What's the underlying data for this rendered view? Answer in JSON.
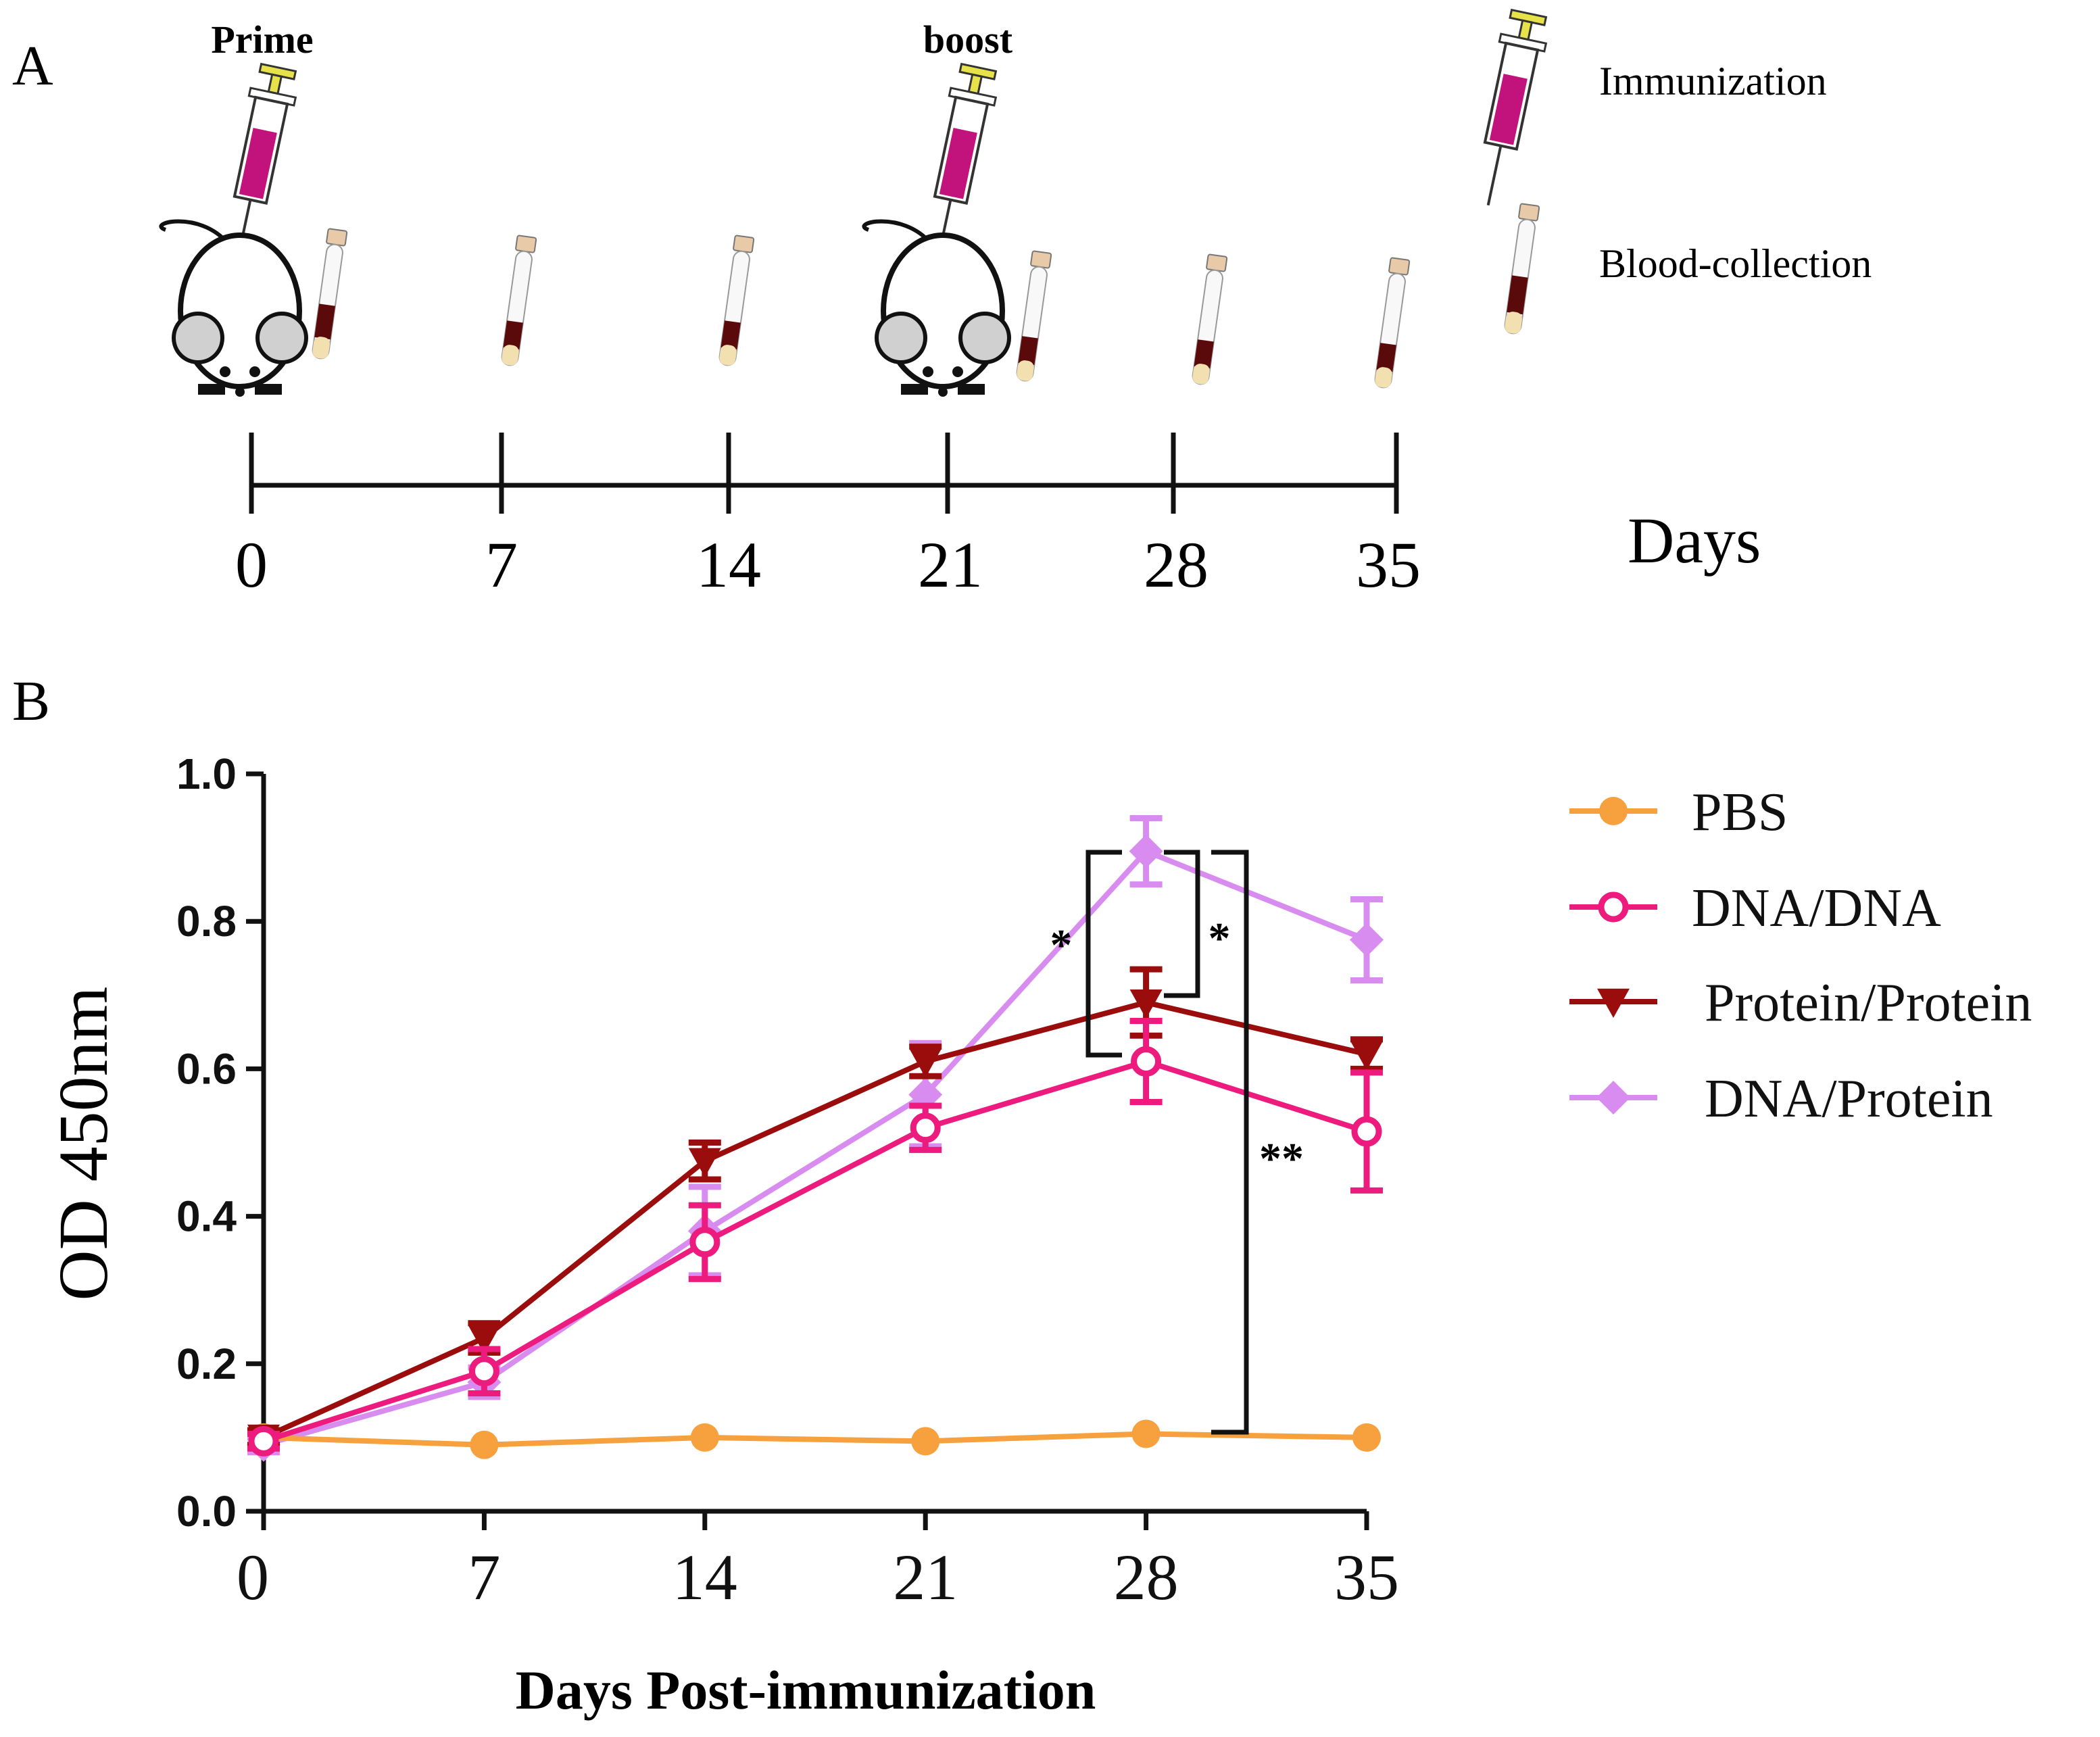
{
  "panel_a": {
    "label": "A",
    "prime_label": "Prime",
    "boost_label": "boost",
    "days_label": "Days",
    "timeline_days": [
      "0",
      "7",
      "14",
      "21",
      "28",
      "35"
    ],
    "legend": {
      "immunization": "Immunization",
      "blood_collection": "Blood-collection"
    }
  },
  "panel_b": {
    "label": "B",
    "significance": {
      "star_left": "*",
      "star_right": "*",
      "double_star": "**"
    }
  },
  "colors": {
    "pbs": "#f7a13e",
    "dna_dna": "#ec1b7d",
    "protein_protein": "#9b0d0d",
    "dna_protein": "#d98cf0",
    "syringe_fill": "#c2137d",
    "syringe_cap": "#e8e24a",
    "blood": "#5a0a0a"
  },
  "chart_data": {
    "type": "line",
    "title": "",
    "xlabel": "Days Post-immunization",
    "ylabel": "OD 450nm",
    "x": [
      0,
      7,
      14,
      21,
      28,
      35
    ],
    "x_tick_labels": [
      "0",
      "7",
      "14",
      "21",
      "28",
      "35"
    ],
    "xlim": [
      0,
      35
    ],
    "ylim": [
      0.0,
      1.0
    ],
    "y_ticks": [
      0.0,
      0.2,
      0.4,
      0.6,
      0.8,
      1.0
    ],
    "y_tick_labels": [
      "0.0",
      "0.2",
      "0.4",
      "0.6",
      "0.8",
      "1.0"
    ],
    "grid": false,
    "legend_position": "right",
    "series": [
      {
        "name": "PBS",
        "key": "pbs",
        "marker": "circle",
        "values": [
          0.1,
          0.09,
          0.1,
          0.095,
          0.105,
          0.1
        ],
        "errors": [
          0.005,
          0.005,
          0.005,
          0.005,
          0.005,
          0.005
        ]
      },
      {
        "name": "DNA/DNA",
        "key": "dna_dna",
        "marker": "open-circle",
        "values": [
          0.095,
          0.19,
          0.365,
          0.52,
          0.61,
          0.515
        ],
        "errors": [
          0.01,
          0.03,
          0.05,
          0.03,
          0.055,
          0.08
        ]
      },
      {
        "name": "Protein/Protein",
        "key": "protein_protein",
        "marker": "triangle-down",
        "values": [
          0.1,
          0.235,
          0.475,
          0.61,
          0.69,
          0.62
        ],
        "errors": [
          0.01,
          0.02,
          0.025,
          0.02,
          0.045,
          0.02
        ]
      },
      {
        "name": "DNA/Protein",
        "key": "dna_protein",
        "marker": "diamond",
        "values": [
          0.09,
          0.175,
          0.38,
          0.565,
          0.895,
          0.775
        ],
        "errors": [
          0.01,
          0.02,
          0.06,
          0.07,
          0.045,
          0.055
        ]
      }
    ]
  }
}
